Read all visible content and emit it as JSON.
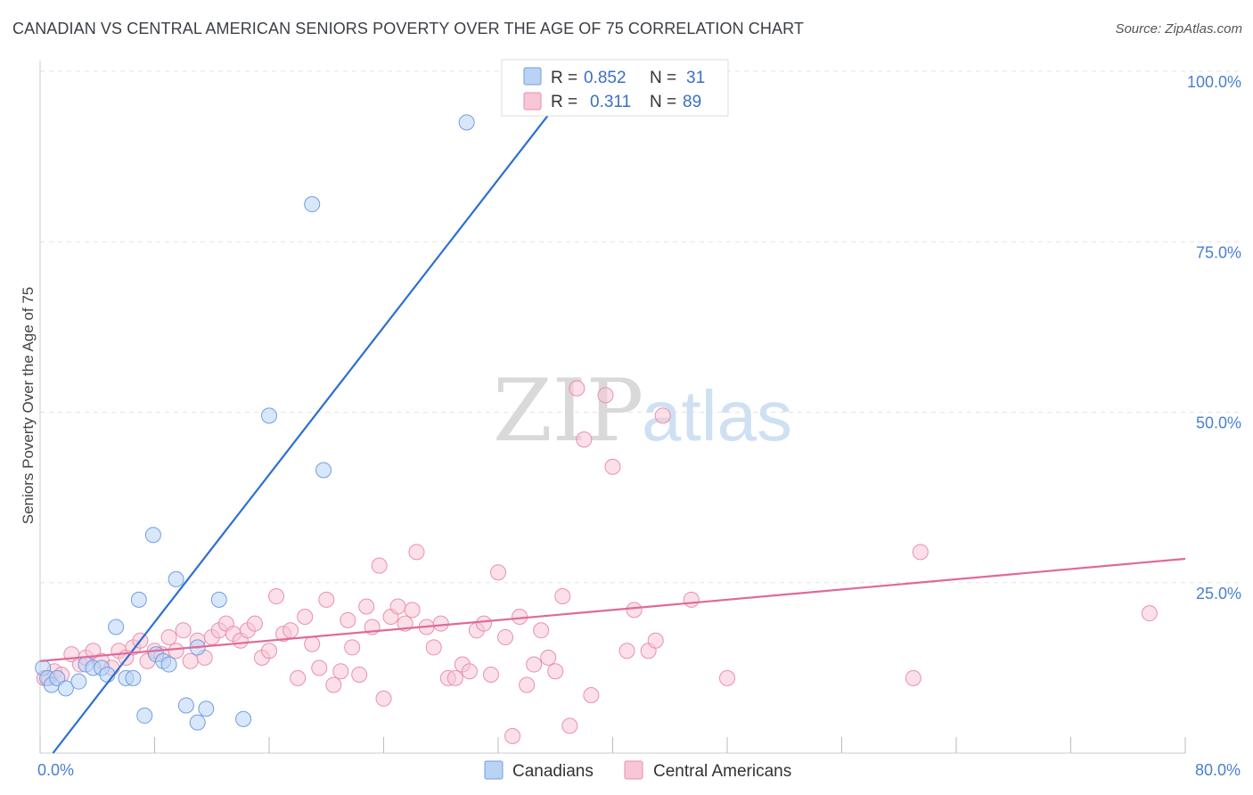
{
  "title": "CANADIAN VS CENTRAL AMERICAN SENIORS POVERTY OVER THE AGE OF 75 CORRELATION CHART",
  "source": "Source: ZipAtlas.com",
  "watermark": {
    "zip": "ZIP",
    "atlas": "atlas"
  },
  "colors": {
    "canadians_fill": "#b9d3f5",
    "canadians_stroke": "#6f9fe0",
    "canadians_line": "#2b6fd1",
    "central_fill": "#f8c6d6",
    "central_stroke": "#ea8fae",
    "central_line": "#e0699a",
    "grid": "#e3e3e3",
    "tick_label": "#4a7fd0"
  },
  "legend": {
    "rows": [
      {
        "r_label": "R =",
        "r_value": "0.852",
        "n_label": "N =",
        "n_value": "31"
      },
      {
        "r_label": "R =",
        "r_value": "0.311",
        "n_label": "N =",
        "n_value": "89"
      }
    ]
  },
  "chart_data": {
    "type": "scatter",
    "title": "CANADIAN VS CENTRAL AMERICAN SENIORS POVERTY OVER THE AGE OF 75 CORRELATION CHART",
    "xlabel": "",
    "ylabel": "Seniors Poverty Over the Age of 75",
    "xlim": [
      0,
      80
    ],
    "ylim": [
      0,
      100
    ],
    "x_tick_labels": [
      "0.0%",
      "80.0%"
    ],
    "y_ticks": [
      25,
      50,
      75,
      100
    ],
    "y_tick_labels": [
      "25.0%",
      "50.0%",
      "75.0%",
      "100.0%"
    ],
    "grid": true,
    "legend_position": "top-center",
    "series": [
      {
        "name": "Canadians",
        "r": 0.852,
        "n": 31,
        "trend": {
          "x": [
            0.9,
            37.5
          ],
          "y": [
            0,
            99
          ]
        },
        "points": [
          [
            0.2,
            12.5
          ],
          [
            0.5,
            11.0
          ],
          [
            0.8,
            10.0
          ],
          [
            1.2,
            11.0
          ],
          [
            1.8,
            9.5
          ],
          [
            2.7,
            10.5
          ],
          [
            3.2,
            13.0
          ],
          [
            3.7,
            12.5
          ],
          [
            4.3,
            12.5
          ],
          [
            4.7,
            11.5
          ],
          [
            5.3,
            18.5
          ],
          [
            6.0,
            11.0
          ],
          [
            6.5,
            11.0
          ],
          [
            6.9,
            22.5
          ],
          [
            7.3,
            5.5
          ],
          [
            7.9,
            32.0
          ],
          [
            8.1,
            14.5
          ],
          [
            8.6,
            13.5
          ],
          [
            9.0,
            13.0
          ],
          [
            9.5,
            25.5
          ],
          [
            10.2,
            7.0
          ],
          [
            11.0,
            4.5
          ],
          [
            11.0,
            15.5
          ],
          [
            11.6,
            6.5
          ],
          [
            12.5,
            22.5
          ],
          [
            14.2,
            5.0
          ],
          [
            16.0,
            49.5
          ],
          [
            19.0,
            80.5
          ],
          [
            19.8,
            41.5
          ],
          [
            29.8,
            92.5
          ],
          [
            36.0,
            99.5
          ]
        ]
      },
      {
        "name": "Central Americans",
        "r": 0.311,
        "n": 89,
        "trend": {
          "x": [
            0,
            80
          ],
          "y": [
            13.5,
            28.5
          ]
        },
        "points": [
          [
            0.3,
            11.0
          ],
          [
            0.6,
            11.0
          ],
          [
            1.0,
            12.0
          ],
          [
            1.5,
            11.5
          ],
          [
            2.2,
            14.5
          ],
          [
            2.8,
            13.0
          ],
          [
            3.2,
            14.0
          ],
          [
            3.7,
            15.0
          ],
          [
            4.3,
            13.5
          ],
          [
            5.0,
            12.5
          ],
          [
            5.5,
            15.0
          ],
          [
            6.0,
            14.0
          ],
          [
            6.5,
            15.5
          ],
          [
            7.0,
            16.5
          ],
          [
            7.5,
            13.5
          ],
          [
            8.0,
            15.0
          ],
          [
            8.5,
            14.5
          ],
          [
            9.0,
            17.0
          ],
          [
            9.5,
            15.0
          ],
          [
            10.0,
            18.0
          ],
          [
            10.5,
            13.5
          ],
          [
            11.0,
            16.5
          ],
          [
            11.5,
            14.0
          ],
          [
            12.0,
            17.0
          ],
          [
            12.5,
            18.0
          ],
          [
            13.0,
            19.0
          ],
          [
            13.5,
            17.5
          ],
          [
            14.0,
            16.5
          ],
          [
            14.5,
            18.0
          ],
          [
            15.0,
            19.0
          ],
          [
            15.5,
            14.0
          ],
          [
            16.0,
            15.0
          ],
          [
            16.5,
            23.0
          ],
          [
            17.0,
            17.5
          ],
          [
            17.5,
            18.0
          ],
          [
            18.0,
            11.0
          ],
          [
            18.5,
            20.0
          ],
          [
            19.0,
            16.0
          ],
          [
            19.5,
            12.5
          ],
          [
            20.0,
            22.5
          ],
          [
            20.5,
            10.0
          ],
          [
            21.0,
            12.0
          ],
          [
            21.5,
            19.5
          ],
          [
            21.8,
            15.5
          ],
          [
            22.3,
            11.5
          ],
          [
            22.8,
            21.5
          ],
          [
            23.2,
            18.5
          ],
          [
            23.7,
            27.5
          ],
          [
            24.0,
            8.0
          ],
          [
            24.5,
            20.0
          ],
          [
            25.0,
            21.5
          ],
          [
            25.5,
            19.0
          ],
          [
            26.0,
            21.0
          ],
          [
            26.3,
            29.5
          ],
          [
            27.0,
            18.5
          ],
          [
            27.5,
            15.5
          ],
          [
            28.0,
            19.0
          ],
          [
            28.5,
            11.0
          ],
          [
            29.0,
            11.0
          ],
          [
            29.5,
            13.0
          ],
          [
            30.0,
            12.0
          ],
          [
            30.5,
            18.0
          ],
          [
            31.0,
            19.0
          ],
          [
            31.5,
            11.5
          ],
          [
            32.0,
            26.5
          ],
          [
            32.5,
            17.0
          ],
          [
            33.0,
            2.5
          ],
          [
            33.5,
            20.0
          ],
          [
            34.0,
            10.0
          ],
          [
            34.5,
            13.0
          ],
          [
            35.0,
            18.0
          ],
          [
            35.5,
            14.0
          ],
          [
            36.0,
            12.0
          ],
          [
            36.5,
            23.0
          ],
          [
            37.0,
            4.0
          ],
          [
            37.5,
            53.5
          ],
          [
            38.0,
            46.0
          ],
          [
            38.5,
            8.5
          ],
          [
            39.5,
            52.5
          ],
          [
            40.0,
            42.0
          ],
          [
            41.0,
            15.0
          ],
          [
            41.5,
            21.0
          ],
          [
            42.5,
            15.0
          ],
          [
            43.0,
            16.5
          ],
          [
            43.5,
            49.5
          ],
          [
            45.5,
            22.5
          ],
          [
            48.0,
            11.0
          ],
          [
            61.0,
            11.0
          ],
          [
            61.5,
            29.5
          ],
          [
            77.5,
            20.5
          ]
        ]
      }
    ]
  }
}
